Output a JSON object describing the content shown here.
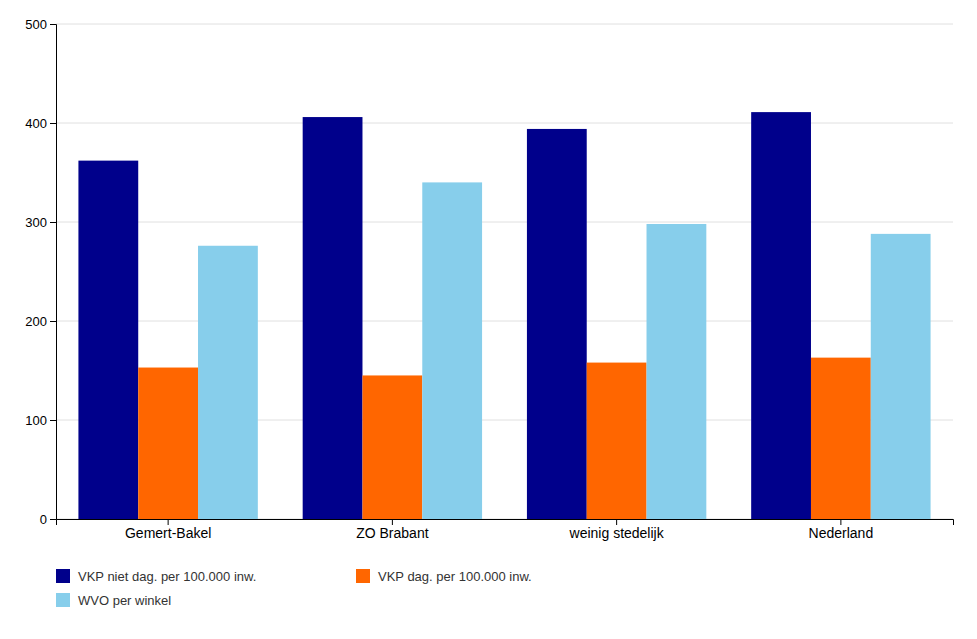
{
  "chart_data": {
    "type": "bar",
    "categories": [
      "Gemert-Bakel",
      "ZO Brabant",
      "weinig stedelijk",
      "Nederland"
    ],
    "series": [
      {
        "name": "VKP niet dag. per 100.000 inw.",
        "color": "#00008B",
        "values": [
          362,
          406,
          394,
          411
        ]
      },
      {
        "name": "VKP dag. per 100.000 inw.",
        "color": "#FF6600",
        "values": [
          153,
          145,
          158,
          163
        ]
      },
      {
        "name": "WVO per winkel",
        "color": "#87CEEB",
        "values": [
          276,
          340,
          298,
          288
        ]
      }
    ],
    "ylim": [
      0,
      500
    ],
    "yticks": [
      0,
      100,
      200,
      300,
      400,
      500
    ],
    "grid": true,
    "legend": "bottom"
  }
}
